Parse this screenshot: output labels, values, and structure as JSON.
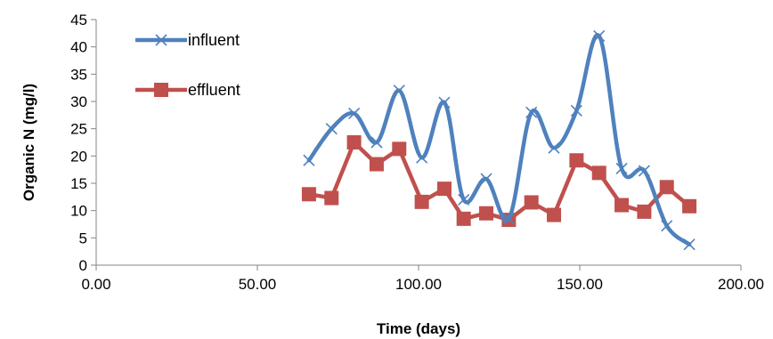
{
  "chart_data": {
    "type": "scatter",
    "xlabel": "Time (days)",
    "ylabel": "Organic N (mg/l)",
    "xlim": [
      0,
      200
    ],
    "ylim": [
      0,
      45
    ],
    "xticks": [
      0,
      50,
      100,
      150,
      200
    ],
    "xtick_labels": [
      "0.00",
      "50.00",
      "100.00",
      "150.00",
      "200.00"
    ],
    "yticks": [
      0,
      5,
      10,
      15,
      20,
      25,
      30,
      35,
      40,
      45
    ],
    "ytick_labels": [
      "0",
      "5",
      "10",
      "15",
      "20",
      "25",
      "30",
      "35",
      "40",
      "45"
    ],
    "grid": false,
    "legend_position": "top-left",
    "series": [
      {
        "name": "influent",
        "color": "#4F81BD",
        "marker": "x",
        "smooth": true,
        "x": [
          66,
          73,
          80,
          87,
          94,
          101,
          108,
          114,
          121,
          128,
          135,
          142,
          149,
          156,
          163,
          170,
          177,
          184
        ],
        "y": [
          19.2,
          25.0,
          27.8,
          22.5,
          32.0,
          19.7,
          29.8,
          12.0,
          15.8,
          8.5,
          28.0,
          21.5,
          28.3,
          42.0,
          17.7,
          17.3,
          7.2,
          3.8
        ]
      },
      {
        "name": "effluent",
        "color": "#C0504D",
        "marker": "square",
        "smooth": false,
        "x": [
          66,
          73,
          80,
          87,
          94,
          101,
          108,
          114,
          121,
          128,
          135,
          142,
          149,
          156,
          163,
          170,
          177,
          184
        ],
        "y": [
          13.0,
          12.3,
          22.5,
          18.5,
          21.3,
          11.6,
          14.0,
          8.5,
          9.5,
          8.3,
          11.5,
          9.2,
          19.2,
          16.9,
          11.0,
          9.8,
          14.3,
          10.8
        ]
      }
    ]
  }
}
